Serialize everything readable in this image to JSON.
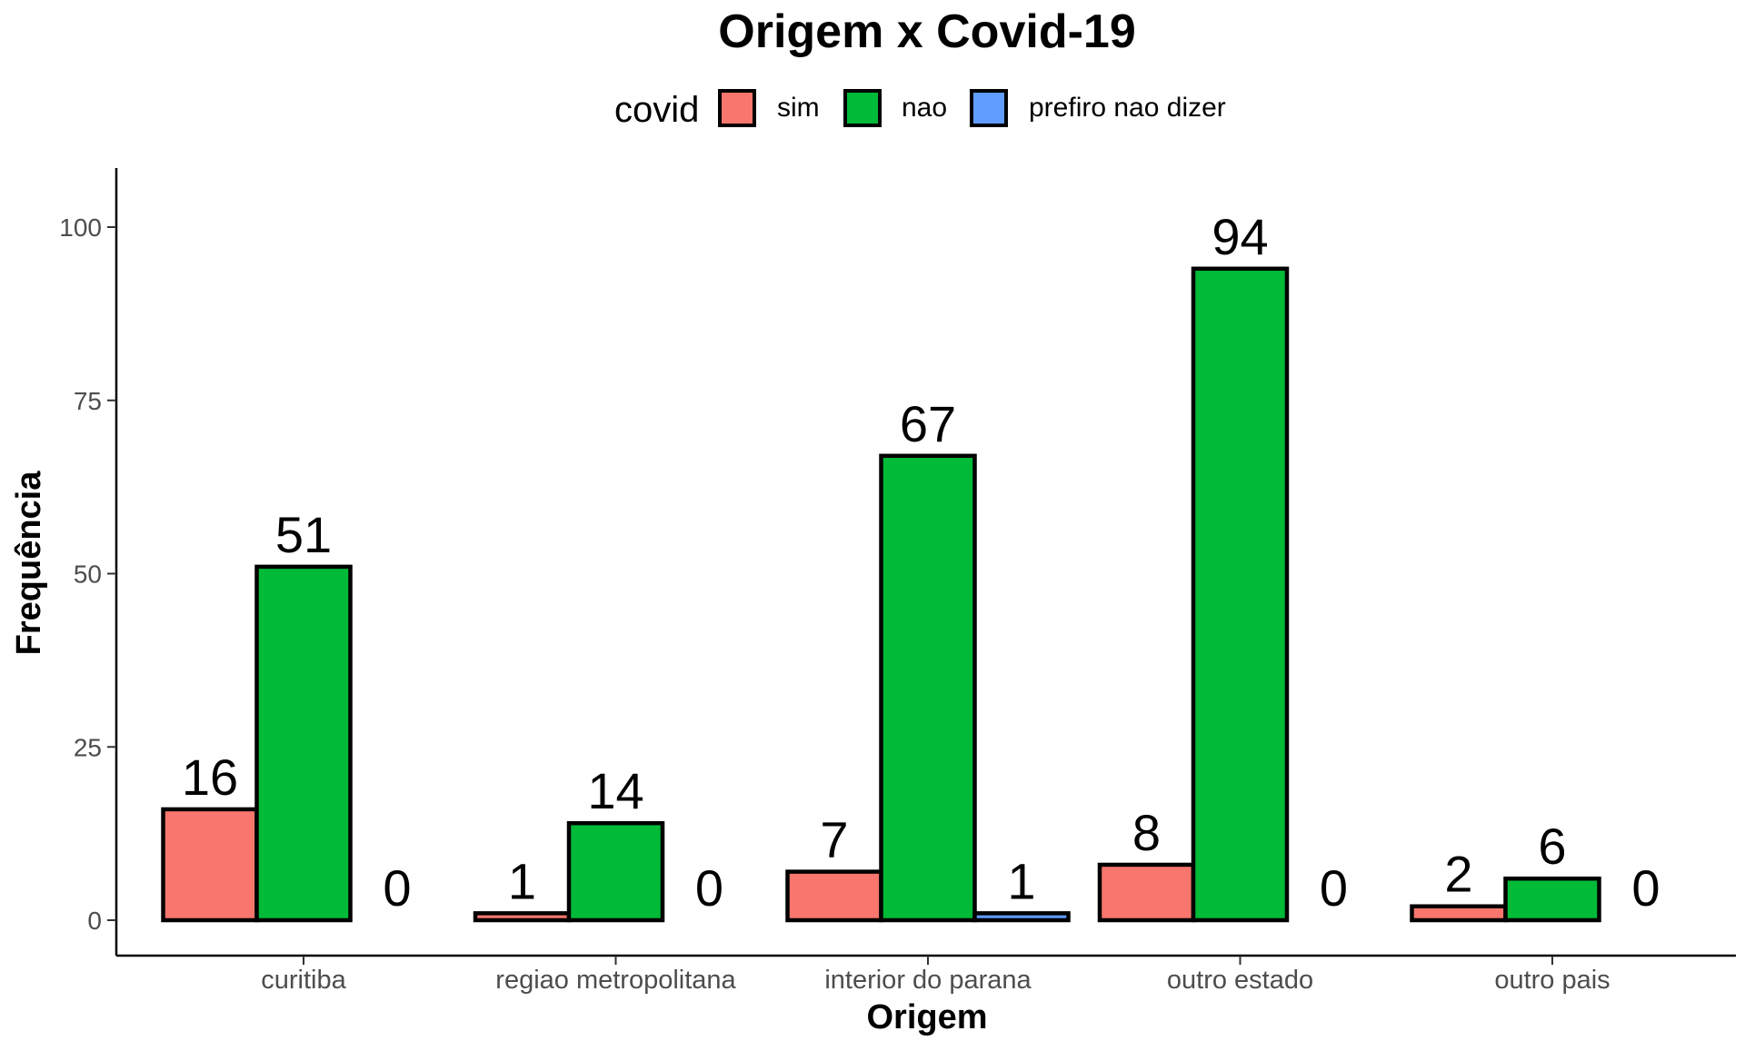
{
  "chart_data": {
    "type": "bar",
    "title": "Origem x Covid-19",
    "xlabel": "Origem",
    "ylabel": "Frequência",
    "ylim": [
      -5,
      108
    ],
    "yticks": [
      0,
      25,
      50,
      75,
      100
    ],
    "grid": false,
    "legend": {
      "title": "covid",
      "position": "top"
    },
    "categories": [
      "curitiba",
      "regiao metropolitana",
      "interior do parana",
      "outro estado",
      "outro pais"
    ],
    "series": [
      {
        "name": "sim",
        "color": "#F8766D",
        "values": [
          16,
          1,
          7,
          8,
          2
        ]
      },
      {
        "name": "nao",
        "color": "#00BA38",
        "values": [
          51,
          14,
          67,
          94,
          6
        ]
      },
      {
        "name": "prefiro nao dizer",
        "color": "#619CFF",
        "values": [
          0,
          0,
          1,
          0,
          0
        ]
      }
    ],
    "data_labels": true
  }
}
